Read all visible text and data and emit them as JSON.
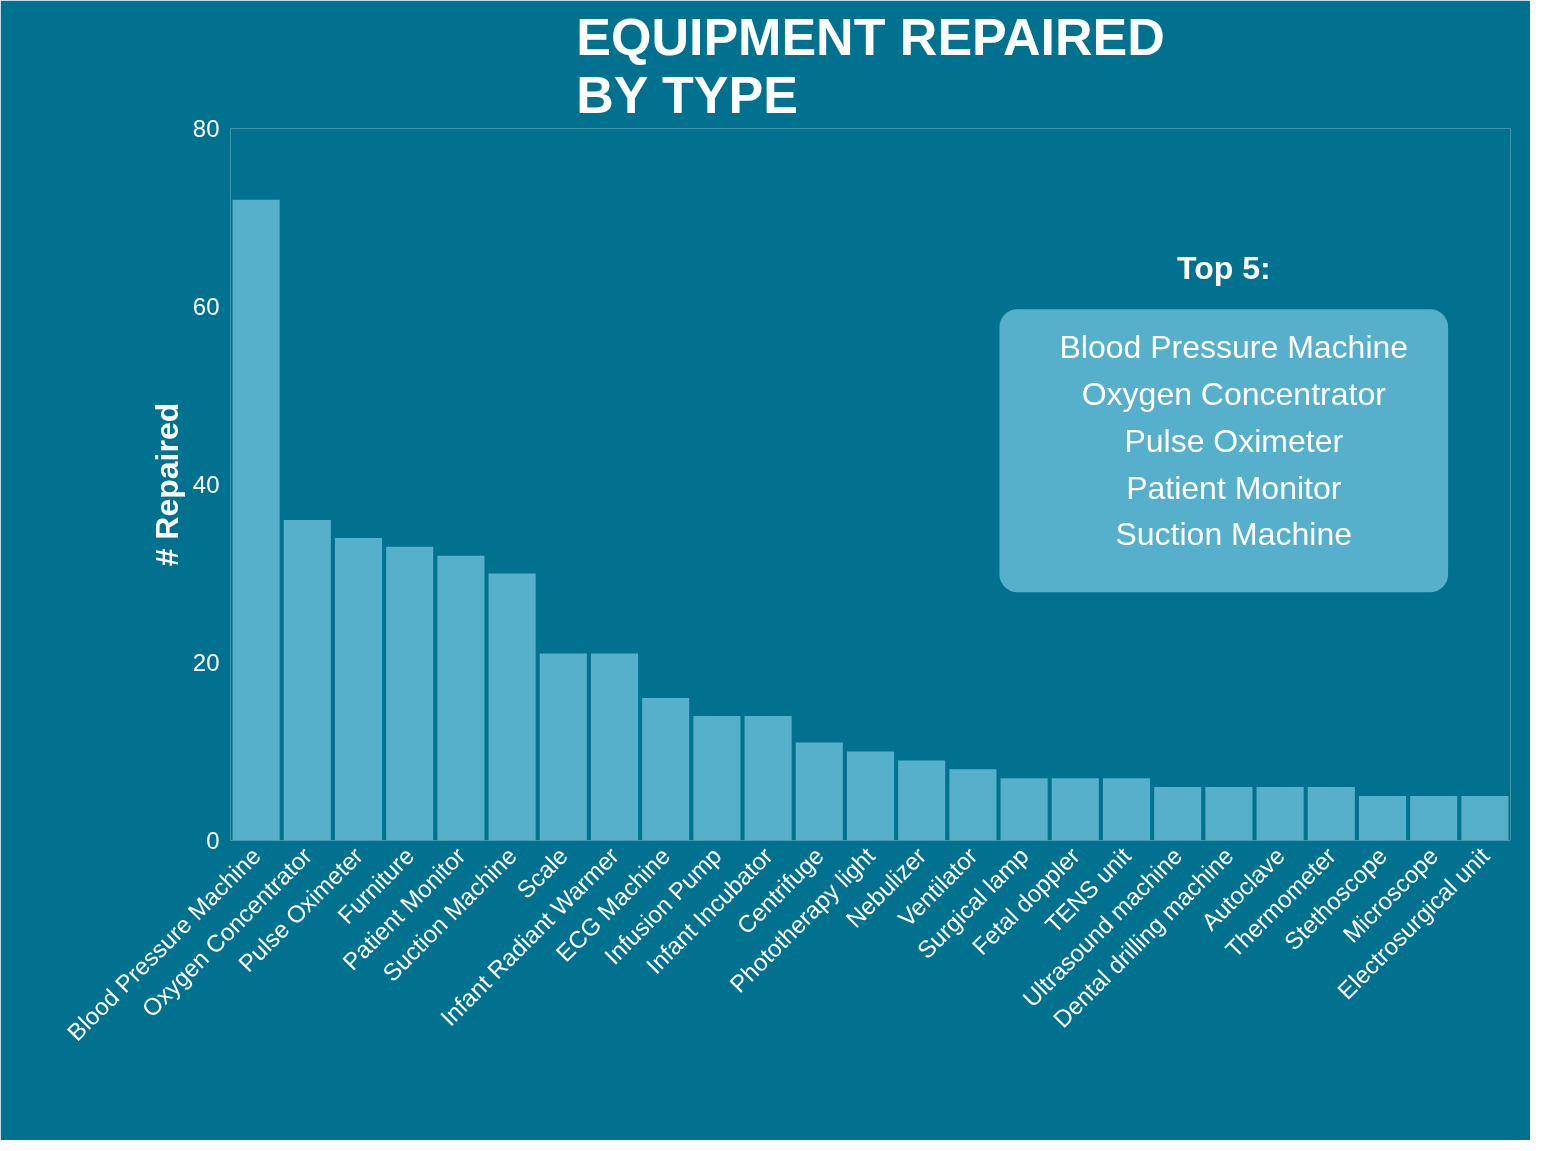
{
  "chart_data": {
    "type": "bar",
    "title": "EQUIPMENT REPAIRED\nBY TYPE",
    "ylabel": "# Repaired",
    "categories": [
      "Blood Pressure Machine",
      "Oxygen Concentrator",
      "Pulse Oximeter",
      "Furniture",
      "Patient Monitor",
      "Suction Machine",
      "Scale",
      "Infant Radiant Warmer",
      "ECG Machine",
      "Infusion Pump",
      "Infant Incubator",
      "Centrifuge",
      "Phototherapy light",
      "Nebulizer",
      "Ventilator",
      "Surgical lamp",
      "Fetal doppler",
      "TENS unit",
      "Ultrasound machine",
      "Dental drilling machine",
      "Autoclave",
      "Thermometer",
      "Stethoscope",
      "Microscope",
      "Electrosurgical unit"
    ],
    "values": [
      72,
      36,
      34,
      33,
      32,
      30,
      21,
      21,
      16,
      14,
      14,
      11,
      10,
      9,
      8,
      7,
      7,
      7,
      6,
      6,
      6,
      6,
      5,
      5,
      5
    ],
    "color": "#56b0cb",
    "ylim": [
      0,
      80
    ],
    "yticks": [
      0,
      20,
      40,
      60,
      80
    ],
    "grid": false,
    "annotations": [
      "Top 5:",
      "Blood Pressure Machine",
      "Oxygen Concentrator",
      "Pulse Oximeter",
      "Patient Monitor",
      "Suction Machine"
    ]
  }
}
